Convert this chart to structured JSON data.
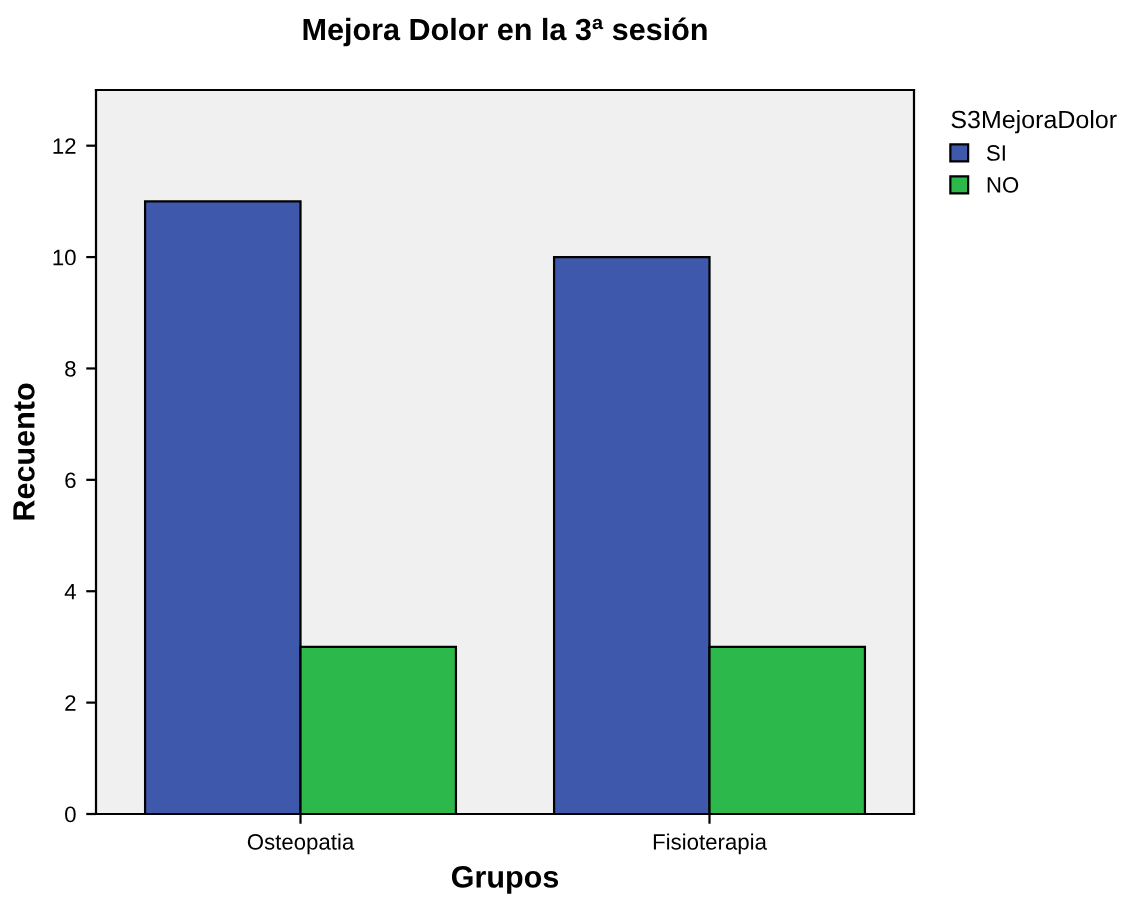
{
  "chart_data": {
    "type": "bar",
    "title": "Mejora Dolor en la 3ª sesión",
    "xlabel": "Grupos",
    "ylabel": "Recuento",
    "legend_title": "S3MejoraDolor",
    "categories": [
      "Osteopatia",
      "Fisioterapia"
    ],
    "series": [
      {
        "name": "SI",
        "color": "#3e58ac",
        "values": [
          11,
          10
        ]
      },
      {
        "name": "NO",
        "color": "#2db84c",
        "values": [
          3,
          3
        ]
      }
    ],
    "ylim": [
      0,
      13
    ],
    "yticks": [
      0,
      2,
      4,
      6,
      8,
      10,
      12
    ],
    "grid": false,
    "legend": "top right"
  }
}
